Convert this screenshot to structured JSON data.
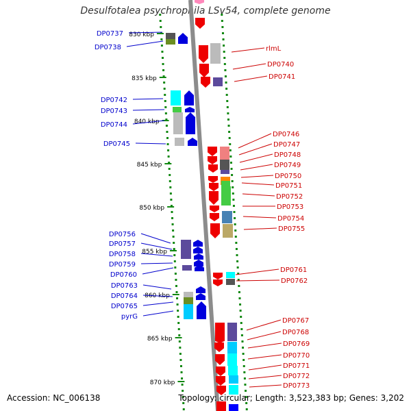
{
  "title": "Desulfotalea psychrophila LSv54, complete genome",
  "footer": {
    "accession": "Accession: NC_006138",
    "summary": "Topology: circular; Length: 3,523,383 bp; Genes: 3,202"
  },
  "kbp_ticks": [
    "830 kbp",
    "835 kbp",
    "840 kbp",
    "845 kbp",
    "850 kbp",
    "855 kbp",
    "860 kbp",
    "865 kbp",
    "870 kbp"
  ],
  "labels_left": [
    "DP0737",
    "DP0738",
    "DP0742",
    "DP0743",
    "DP0744",
    "DP0745",
    "DP0756",
    "DP0757",
    "DP0758",
    "DP0759",
    "DP0760",
    "DP0763",
    "DP0764",
    "DP0765",
    "pyrG"
  ],
  "labels_right": [
    "rlmL",
    "DP0740",
    "DP0741",
    "DP0746",
    "DP0747",
    "DP0748",
    "DP0749",
    "DP0750",
    "DP0751",
    "DP0752",
    "DP0753",
    "DP0754",
    "DP0755",
    "DP0761",
    "DP0762",
    "DP0767",
    "DP0768",
    "DP0769",
    "DP0770",
    "DP0771",
    "DP0772",
    "DP0773"
  ],
  "colors": {
    "forward_strand": "#0000dd",
    "reverse_strand": "#ee0000",
    "label_left": "#0000cc",
    "label_right": "#cc0000",
    "backbone": "#8c8c8c",
    "tick_dots": "#118811"
  }
}
